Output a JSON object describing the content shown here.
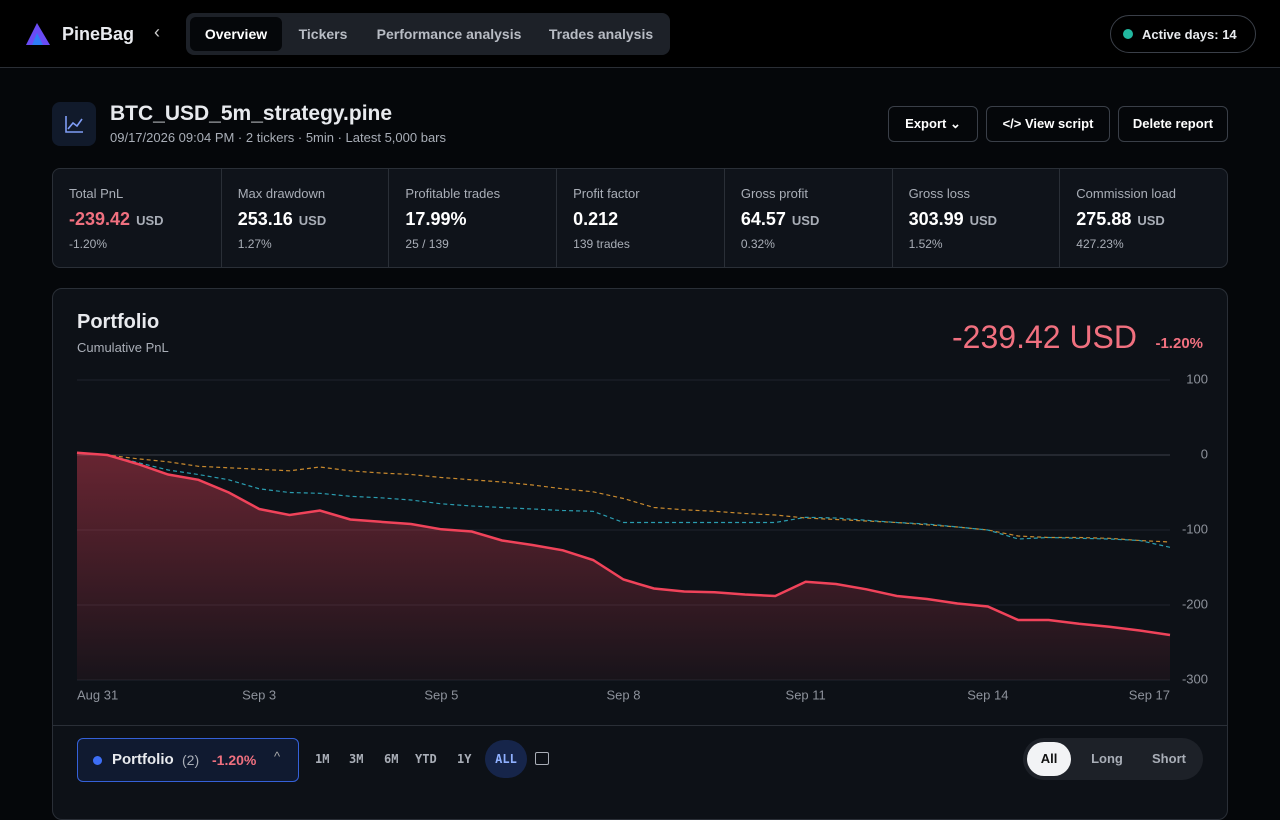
{
  "header": {
    "brand": "PineBag",
    "tabs": [
      "Overview",
      "Tickers",
      "Performance analysis",
      "Trades analysis"
    ],
    "active_days": "Active days: 14"
  },
  "report": {
    "title": "BTC_USD_5m_strategy.pine",
    "meta": "09/17/2026 09:04 PM · 2 tickers · 5min · Latest 5,000 bars",
    "buttons": [
      "Export",
      "View script",
      "Delete report"
    ]
  },
  "stats": [
    {
      "label": "Total PnL",
      "value": "-239.42",
      "unit": "USD",
      "sub": "-1.20%"
    },
    {
      "label": "Max drawdown",
      "value": "253.16",
      "unit": "USD",
      "sub": "1.27%"
    },
    {
      "label": "Profitable trades",
      "value": "17.99%",
      "sub": "25 / 139"
    },
    {
      "label": "Profit factor",
      "value": "0.212",
      "sub": "139 trades"
    },
    {
      "label": "Gross profit",
      "value": "64.57",
      "unit": "USD",
      "sub": "0.32%"
    },
    {
      "label": "Gross loss",
      "value": "303.99",
      "unit": "USD",
      "sub": "1.52%"
    },
    {
      "label": "Commission load",
      "value": "275.88",
      "unit": "USD",
      "sub": "427.23%"
    }
  ],
  "portfolio": {
    "title": "Portfolio",
    "subtitle": "Cumulative PnL",
    "total": "-239.42 USD",
    "change": "-1.20%",
    "chart": {
      "type": "line",
      "categories": [
        "Aug 31",
        "Sep 3",
        "Sep 5",
        "Sep 8",
        "Sep 11",
        "Sep 14",
        "Sep 17"
      ],
      "ylim": [
        -300,
        100
      ],
      "yticks": [
        100,
        0,
        -100,
        -200,
        -300
      ],
      "grid": true,
      "series": [
        {
          "color": "#c98a2e",
          "dashed": true,
          "values": [
            3,
            0,
            -5,
            -9,
            -15,
            -17,
            -19,
            -21,
            -16,
            -21,
            -24,
            -26,
            -30,
            -33,
            -36,
            -40,
            -45,
            -49,
            -58,
            -70,
            -73,
            -75,
            -78,
            -80,
            -84,
            -86,
            -88,
            -90,
            -93,
            -96,
            -100,
            -108,
            -110,
            -110,
            -111,
            -114,
            -116
          ]
        },
        {
          "color": "#2a9db0",
          "dashed": true,
          "values": [
            3,
            0,
            -10,
            -20,
            -26,
            -33,
            -45,
            -50,
            -51,
            -55,
            -57,
            -60,
            -65,
            -68,
            -70,
            -72,
            -74,
            -75,
            -90,
            -90,
            -90,
            -90,
            -90,
            -90,
            -83,
            -84,
            -87,
            -90,
            -92,
            -96,
            -100,
            -112,
            -110,
            -111,
            -112,
            -114,
            -123
          ]
        },
        {
          "color": "#f0435a",
          "fill": true,
          "values": [
            3,
            0,
            -12,
            -26,
            -33,
            -50,
            -72,
            -80,
            -74,
            -86,
            -89,
            -92,
            -99,
            -102,
            -114,
            -120,
            -127,
            -140,
            -166,
            -178,
            -182,
            -183,
            -186,
            -188,
            -169,
            -172,
            -179,
            -188,
            -192,
            -198,
            -202,
            -220,
            -220,
            -225,
            -229,
            -234,
            -240
          ]
        }
      ]
    }
  },
  "controls": {
    "selector": {
      "label": "Portfolio",
      "count": "(2)",
      "change": "-1.20%"
    },
    "ranges": [
      "1M",
      "3M",
      "6M",
      "YTD",
      "1Y",
      "ALL"
    ],
    "sides": [
      "All",
      "Long",
      "Short"
    ]
  }
}
